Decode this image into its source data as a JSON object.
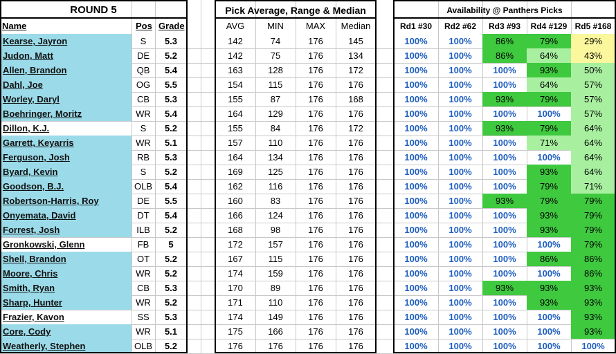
{
  "round_title": "ROUND 5",
  "pick_title": "Pick Average, Range & Median",
  "avail_title": "Availability @ Panthers Picks",
  "headers": {
    "name": "Name",
    "pos": "Pos",
    "grade": "Grade",
    "avg": "AVG",
    "min": "MIN",
    "max": "MAX",
    "median": "Median",
    "rd1": "Rd1 #30",
    "rd2": "Rd2 #62",
    "rd3": "Rd3 #93",
    "rd4": "Rd4 #129",
    "rd5": "Rd5 #168"
  },
  "colors": {
    "name_bg": "#9bdbe9",
    "green_dark": "#3fc93f",
    "green_light": "#a8f0a0",
    "yellow": "#fbf79c",
    "blue_text": "#1f5fbf"
  },
  "rows": [
    {
      "name": "Kearse, Jayron",
      "pos": "S",
      "grade": "5.3",
      "avg": "142",
      "min": "74",
      "max": "176",
      "median": "145",
      "rd1": "100%",
      "rd2": "100%",
      "rd3": "86%",
      "rd4": "79%",
      "rd5": "29%",
      "c3": "green_dark",
      "c4": "green_dark",
      "c5": "yellow",
      "hl": true
    },
    {
      "name": "Judon, Matt",
      "pos": "DE",
      "grade": "5.2",
      "avg": "142",
      "min": "75",
      "max": "176",
      "median": "134",
      "rd1": "100%",
      "rd2": "100%",
      "rd3": "86%",
      "rd4": "64%",
      "rd5": "43%",
      "c3": "green_dark",
      "c4": "green_light",
      "c5": "yellow",
      "hl": true
    },
    {
      "name": "Allen, Brandon",
      "pos": "QB",
      "grade": "5.4",
      "avg": "163",
      "min": "128",
      "max": "176",
      "median": "172",
      "rd1": "100%",
      "rd2": "100%",
      "rd3": "100%",
      "rd4": "93%",
      "rd5": "50%",
      "c3": "",
      "c4": "green_dark",
      "c5": "green_light",
      "hl": true
    },
    {
      "name": "Dahl, Joe",
      "pos": "OG",
      "grade": "5.5",
      "avg": "154",
      "min": "115",
      "max": "176",
      "median": "176",
      "rd1": "100%",
      "rd2": "100%",
      "rd3": "100%",
      "rd4": "64%",
      "rd5": "57%",
      "c3": "",
      "c4": "green_light",
      "c5": "green_light",
      "hl": true
    },
    {
      "name": "Worley, Daryl",
      "pos": "CB",
      "grade": "5.3",
      "avg": "155",
      "min": "87",
      "max": "176",
      "median": "168",
      "rd1": "100%",
      "rd2": "100%",
      "rd3": "93%",
      "rd4": "79%",
      "rd5": "57%",
      "c3": "green_dark",
      "c4": "green_dark",
      "c5": "green_light",
      "hl": true
    },
    {
      "name": "Boehringer, Moritz",
      "pos": "WR",
      "grade": "5.4",
      "avg": "164",
      "min": "129",
      "max": "176",
      "median": "176",
      "rd1": "100%",
      "rd2": "100%",
      "rd3": "100%",
      "rd4": "100%",
      "rd5": "57%",
      "c3": "",
      "c4": "",
      "c5": "green_light",
      "hl": true
    },
    {
      "name": "Dillon, K.J.",
      "pos": "S",
      "grade": "5.2",
      "avg": "155",
      "min": "84",
      "max": "176",
      "median": "172",
      "rd1": "100%",
      "rd2": "100%",
      "rd3": "93%",
      "rd4": "79%",
      "rd5": "64%",
      "c3": "green_dark",
      "c4": "green_dark",
      "c5": "green_light",
      "hl": false
    },
    {
      "name": "Garrett, Keyarris",
      "pos": "WR",
      "grade": "5.1",
      "avg": "157",
      "min": "110",
      "max": "176",
      "median": "176",
      "rd1": "100%",
      "rd2": "100%",
      "rd3": "100%",
      "rd4": "71%",
      "rd5": "64%",
      "c3": "",
      "c4": "green_light",
      "c5": "green_light",
      "hl": true
    },
    {
      "name": "Ferguson, Josh",
      "pos": "RB",
      "grade": "5.3",
      "avg": "164",
      "min": "134",
      "max": "176",
      "median": "176",
      "rd1": "100%",
      "rd2": "100%",
      "rd3": "100%",
      "rd4": "100%",
      "rd5": "64%",
      "c3": "",
      "c4": "",
      "c5": "green_light",
      "hl": true
    },
    {
      "name": "Byard, Kevin",
      "pos": "S",
      "grade": "5.2",
      "avg": "169",
      "min": "125",
      "max": "176",
      "median": "176",
      "rd1": "100%",
      "rd2": "100%",
      "rd3": "100%",
      "rd4": "93%",
      "rd5": "64%",
      "c3": "",
      "c4": "green_dark",
      "c5": "green_light",
      "hl": true
    },
    {
      "name": "Goodson, B.J.",
      "pos": "OLB",
      "grade": "5.4",
      "avg": "162",
      "min": "116",
      "max": "176",
      "median": "176",
      "rd1": "100%",
      "rd2": "100%",
      "rd3": "100%",
      "rd4": "79%",
      "rd5": "71%",
      "c3": "",
      "c4": "green_dark",
      "c5": "green_light",
      "hl": true
    },
    {
      "name": "Robertson-Harris, Roy",
      "pos": "DE",
      "grade": "5.5",
      "avg": "160",
      "min": "83",
      "max": "176",
      "median": "176",
      "rd1": "100%",
      "rd2": "100%",
      "rd3": "93%",
      "rd4": "79%",
      "rd5": "79%",
      "c3": "green_dark",
      "c4": "green_dark",
      "c5": "green_dark",
      "hl": true
    },
    {
      "name": "Onyemata, David",
      "pos": "DT",
      "grade": "5.4",
      "avg": "166",
      "min": "124",
      "max": "176",
      "median": "176",
      "rd1": "100%",
      "rd2": "100%",
      "rd3": "100%",
      "rd4": "93%",
      "rd5": "79%",
      "c3": "",
      "c4": "green_dark",
      "c5": "green_dark",
      "hl": true
    },
    {
      "name": "Forrest, Josh",
      "pos": "ILB",
      "grade": "5.2",
      "avg": "168",
      "min": "98",
      "max": "176",
      "median": "176",
      "rd1": "100%",
      "rd2": "100%",
      "rd3": "100%",
      "rd4": "93%",
      "rd5": "79%",
      "c3": "",
      "c4": "green_dark",
      "c5": "green_dark",
      "hl": true
    },
    {
      "name": "Gronkowski, Glenn",
      "pos": "FB",
      "grade": "5",
      "avg": "172",
      "min": "157",
      "max": "176",
      "median": "176",
      "rd1": "100%",
      "rd2": "100%",
      "rd3": "100%",
      "rd4": "100%",
      "rd5": "79%",
      "c3": "",
      "c4": "",
      "c5": "green_dark",
      "hl": false
    },
    {
      "name": "Shell, Brandon",
      "pos": "OT",
      "grade": "5.2",
      "avg": "167",
      "min": "115",
      "max": "176",
      "median": "176",
      "rd1": "100%",
      "rd2": "100%",
      "rd3": "100%",
      "rd4": "86%",
      "rd5": "86%",
      "c3": "",
      "c4": "green_dark",
      "c5": "green_dark",
      "hl": true
    },
    {
      "name": "Moore, Chris",
      "pos": "WR",
      "grade": "5.2",
      "avg": "174",
      "min": "159",
      "max": "176",
      "median": "176",
      "rd1": "100%",
      "rd2": "100%",
      "rd3": "100%",
      "rd4": "100%",
      "rd5": "86%",
      "c3": "",
      "c4": "",
      "c5": "green_dark",
      "hl": true
    },
    {
      "name": "Smith, Ryan",
      "pos": "CB",
      "grade": "5.3",
      "avg": "170",
      "min": "89",
      "max": "176",
      "median": "176",
      "rd1": "100%",
      "rd2": "100%",
      "rd3": "93%",
      "rd4": "93%",
      "rd5": "93%",
      "c3": "green_dark",
      "c4": "green_dark",
      "c5": "green_dark",
      "hl": true
    },
    {
      "name": "Sharp, Hunter",
      "pos": "WR",
      "grade": "5.2",
      "avg": "171",
      "min": "110",
      "max": "176",
      "median": "176",
      "rd1": "100%",
      "rd2": "100%",
      "rd3": "100%",
      "rd4": "93%",
      "rd5": "93%",
      "c3": "",
      "c4": "green_dark",
      "c5": "green_dark",
      "hl": true
    },
    {
      "name": "Frazier, Kavon",
      "pos": "SS",
      "grade": "5.3",
      "avg": "174",
      "min": "149",
      "max": "176",
      "median": "176",
      "rd1": "100%",
      "rd2": "100%",
      "rd3": "100%",
      "rd4": "100%",
      "rd5": "93%",
      "c3": "",
      "c4": "",
      "c5": "green_dark",
      "hl": false
    },
    {
      "name": "Core, Cody",
      "pos": "WR",
      "grade": "5.1",
      "avg": "175",
      "min": "166",
      "max": "176",
      "median": "176",
      "rd1": "100%",
      "rd2": "100%",
      "rd3": "100%",
      "rd4": "100%",
      "rd5": "93%",
      "c3": "",
      "c4": "",
      "c5": "green_dark",
      "hl": true
    },
    {
      "name": "Weatherly, Stephen",
      "pos": "OLB",
      "grade": "5.2",
      "avg": "176",
      "min": "176",
      "max": "176",
      "median": "176",
      "rd1": "100%",
      "rd2": "100%",
      "rd3": "100%",
      "rd4": "100%",
      "rd5": "100%",
      "c3": "",
      "c4": "",
      "c5": "",
      "hl": true
    }
  ]
}
